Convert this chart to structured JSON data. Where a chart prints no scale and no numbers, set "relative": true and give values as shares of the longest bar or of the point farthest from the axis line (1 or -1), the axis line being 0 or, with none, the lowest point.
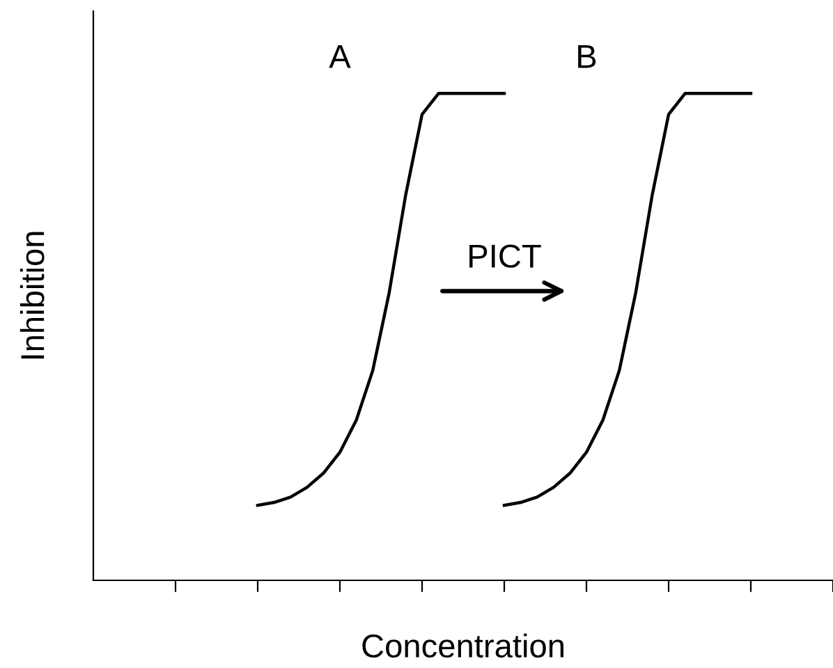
{
  "chart_data": {
    "type": "line",
    "relative": true,
    "xlabel": "Concentration",
    "ylabel": "Inhibition",
    "categories": [
      null,
      null,
      null,
      null,
      null,
      null,
      null,
      null,
      null,
      null,
      null,
      null,
      null,
      null,
      null,
      null,
      null,
      null,
      null,
      null,
      null,
      null,
      null,
      null,
      null,
      null,
      null,
      null,
      null,
      null,
      null,
      null,
      null,
      null,
      null,
      null,
      null,
      null,
      null,
      null,
      null
    ],
    "series": [
      {
        "name": "A",
        "color": "#000000",
        "values": [
          null,
          null,
          null,
          null,
          null,
          0.154,
          0.16,
          0.171,
          0.191,
          0.22,
          0.263,
          0.329,
          0.431,
          0.591,
          0.791,
          0.957,
          1,
          1,
          1,
          1,
          1,
          null,
          null,
          null,
          null,
          null,
          null,
          null,
          null,
          null,
          null,
          null,
          null,
          null,
          null,
          null,
          null,
          null,
          null,
          null,
          null
        ]
      },
      {
        "name": "B",
        "color": "#000000",
        "values": [
          null,
          null,
          null,
          null,
          null,
          null,
          null,
          null,
          null,
          null,
          null,
          null,
          null,
          null,
          null,
          null,
          null,
          null,
          null,
          null,
          0.154,
          0.16,
          0.171,
          0.191,
          0.22,
          0.263,
          0.329,
          0.431,
          0.591,
          0.791,
          0.957,
          1,
          1,
          1,
          1,
          1,
          null,
          null,
          null,
          null,
          null
        ]
      }
    ],
    "annotations": [
      "PICT"
    ],
    "grid": false,
    "legend": false,
    "marker": "none",
    "line_style": "solid"
  }
}
